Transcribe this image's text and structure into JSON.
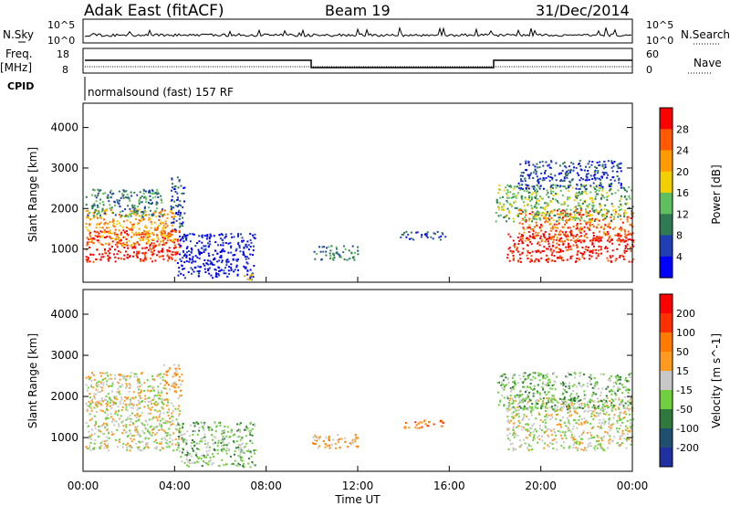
{
  "header": {
    "station": "Adak East (fitACF)",
    "beam": "Beam 19",
    "date": "31/Dec/2014"
  },
  "top_panels": {
    "nsky_label": "N.Sky",
    "nsearch_label": "N.Search",
    "nsky_ticks": [
      "10^5",
      "10^0"
    ],
    "nsearch_ticks": [
      "10^5",
      "10^0"
    ],
    "freq_label": "Freq.",
    "freq_unit": "[MHz]",
    "freq_ticks": [
      "18",
      "8"
    ],
    "nave_label": "Nave",
    "nave_ticks": [
      "60",
      "0"
    ],
    "cpid_label": "CPID",
    "cpid_text": "normalsound (fast) 157 RF"
  },
  "chart_data": [
    {
      "type": "heatmap",
      "name": "power",
      "ylabel": "Slant Range [km]",
      "xlabel": "",
      "y_ticks": [
        "1000",
        "2000",
        "3000",
        "4000"
      ],
      "ylim": [
        180,
        4600
      ],
      "xlim_hours": [
        0,
        24
      ],
      "colorbar": {
        "label": "Power [dB]",
        "ticks": [
          "4",
          "8",
          "12",
          "16",
          "20",
          "24",
          "28"
        ],
        "colors": [
          "#0000ff",
          "#1f3fb3",
          "#2f7a52",
          "#5fbf5f",
          "#f2d000",
          "#ff9a00",
          "#ff5a00",
          "#ff0000"
        ]
      },
      "regions": [
        {
          "t0": 0.1,
          "t1": 4.2,
          "r0": 700,
          "r1": 1500,
          "level": 7
        },
        {
          "t0": 0.1,
          "t1": 4.0,
          "r0": 1100,
          "r1": 2000,
          "level": 5
        },
        {
          "t0": 0.1,
          "t1": 3.5,
          "r0": 1800,
          "r1": 2500,
          "level": 2
        },
        {
          "t0": 3.8,
          "t1": 4.4,
          "r0": 1500,
          "r1": 2800,
          "level": 1
        },
        {
          "t0": 4.1,
          "t1": 7.5,
          "r0": 300,
          "r1": 1400,
          "level": 0
        },
        {
          "t0": 6.8,
          "t1": 7.4,
          "r0": 250,
          "r1": 400,
          "level": 4
        },
        {
          "t0": 10.0,
          "t1": 12.0,
          "r0": 750,
          "r1": 1100,
          "level": 2
        },
        {
          "t0": 13.8,
          "t1": 15.8,
          "r0": 1250,
          "r1": 1450,
          "level": 1
        },
        {
          "t0": 18.5,
          "t1": 24.0,
          "r0": 700,
          "r1": 1400,
          "level": 7
        },
        {
          "t0": 19.0,
          "t1": 24.0,
          "r0": 1200,
          "r1": 2000,
          "level": 6
        },
        {
          "t0": 18.0,
          "t1": 24.0,
          "r0": 1700,
          "r1": 2600,
          "level": 3
        },
        {
          "t0": 19.0,
          "t1": 23.5,
          "r0": 2500,
          "r1": 3200,
          "level": 1
        }
      ]
    },
    {
      "type": "heatmap",
      "name": "velocity",
      "ylabel": "Slant Range [km]",
      "xlabel": "Time UT",
      "y_ticks": [
        "1000",
        "2000",
        "3000",
        "4000"
      ],
      "ylim": [
        180,
        4600
      ],
      "xlim_hours": [
        0,
        24
      ],
      "x_ticks": [
        "00:00",
        "04:00",
        "08:00",
        "12:00",
        "16:00",
        "20:00",
        "00:00"
      ],
      "colorbar": {
        "label": "Velocity [m s^-1]",
        "ticks": [
          "200",
          "100",
          "50",
          "15",
          "-15",
          "-50",
          "-100",
          "-200"
        ],
        "colors": [
          "#2030a0",
          "#205070",
          "#2f7a3a",
          "#6fcf3f",
          "#c8c8c8",
          "#ff9a20",
          "#ff7a00",
          "#ff3000",
          "#ff0000"
        ]
      },
      "regions": [
        {
          "t0": 0.1,
          "t1": 4.2,
          "r0": 700,
          "r1": 2000,
          "level": 4
        },
        {
          "t0": 0.1,
          "t1": 3.5,
          "r0": 1800,
          "r1": 2600,
          "level": 4
        },
        {
          "t0": 3.5,
          "t1": 4.3,
          "r0": 2000,
          "r1": 2800,
          "level": 5
        },
        {
          "t0": 4.1,
          "t1": 7.5,
          "r0": 300,
          "r1": 1400,
          "level": 3
        },
        {
          "t0": 10.0,
          "t1": 12.0,
          "r0": 750,
          "r1": 1100,
          "level": 5
        },
        {
          "t0": 13.8,
          "t1": 15.8,
          "r0": 1250,
          "r1": 1450,
          "level": 6
        },
        {
          "t0": 18.5,
          "t1": 24.0,
          "r0": 700,
          "r1": 2000,
          "level": 4
        },
        {
          "t0": 18.0,
          "t1": 24.0,
          "r0": 1700,
          "r1": 2600,
          "level": 3
        }
      ]
    }
  ]
}
